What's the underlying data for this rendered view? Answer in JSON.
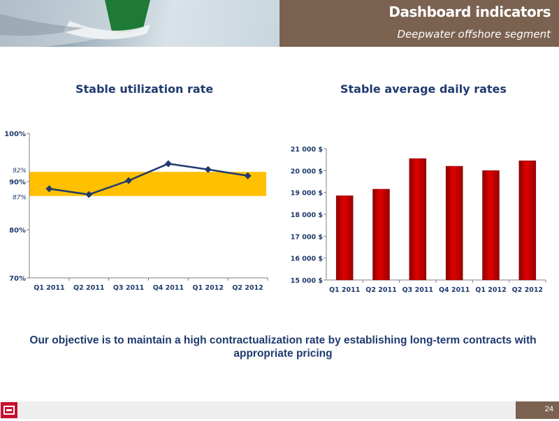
{
  "header": {
    "title": "Dashboard indicators",
    "subtitle": "Deepwater offshore segment"
  },
  "objective": "Our objective is to maintain a high contractualization rate by establishing long-term contracts with appropriate pricing",
  "footer": {
    "page_number": "24"
  },
  "colors": {
    "header_box": "#7b6250",
    "title_text": "#1f3a6e",
    "band": "#ffc000",
    "line": "#1f3a6e",
    "bar": "#c00000",
    "logo": "#c8102e"
  },
  "chart_data": [
    {
      "type": "line",
      "title": "Stable utilization rate",
      "categories": [
        "Q1 2011",
        "Q2 2011",
        "Q3 2011",
        "Q4 2011",
        "Q1 2012",
        "Q2 2012"
      ],
      "values": [
        88.5,
        87.3,
        90.2,
        93.7,
        92.5,
        91.2
      ],
      "ylim": [
        70,
        100
      ],
      "y_ticks": [
        "70%",
        "80%",
        "90%",
        "100%"
      ],
      "band": {
        "low": 87,
        "high": 92,
        "low_label": "87%",
        "high_label": "92%"
      },
      "grid": false
    },
    {
      "type": "bar",
      "title": "Stable average daily rates",
      "categories": [
        "Q1 2011",
        "Q2 2011",
        "Q3 2011",
        "Q4 2011",
        "Q1 2012",
        "Q2 2012"
      ],
      "values": [
        18850,
        19150,
        20550,
        20200,
        20000,
        20450
      ],
      "ylim": [
        15000,
        21000
      ],
      "y_ticks": [
        "15 000 $",
        "16 000 $",
        "17 000 $",
        "18 000 $",
        "19 000 $",
        "20 000 $",
        "21 000 $"
      ],
      "grid": false
    }
  ]
}
